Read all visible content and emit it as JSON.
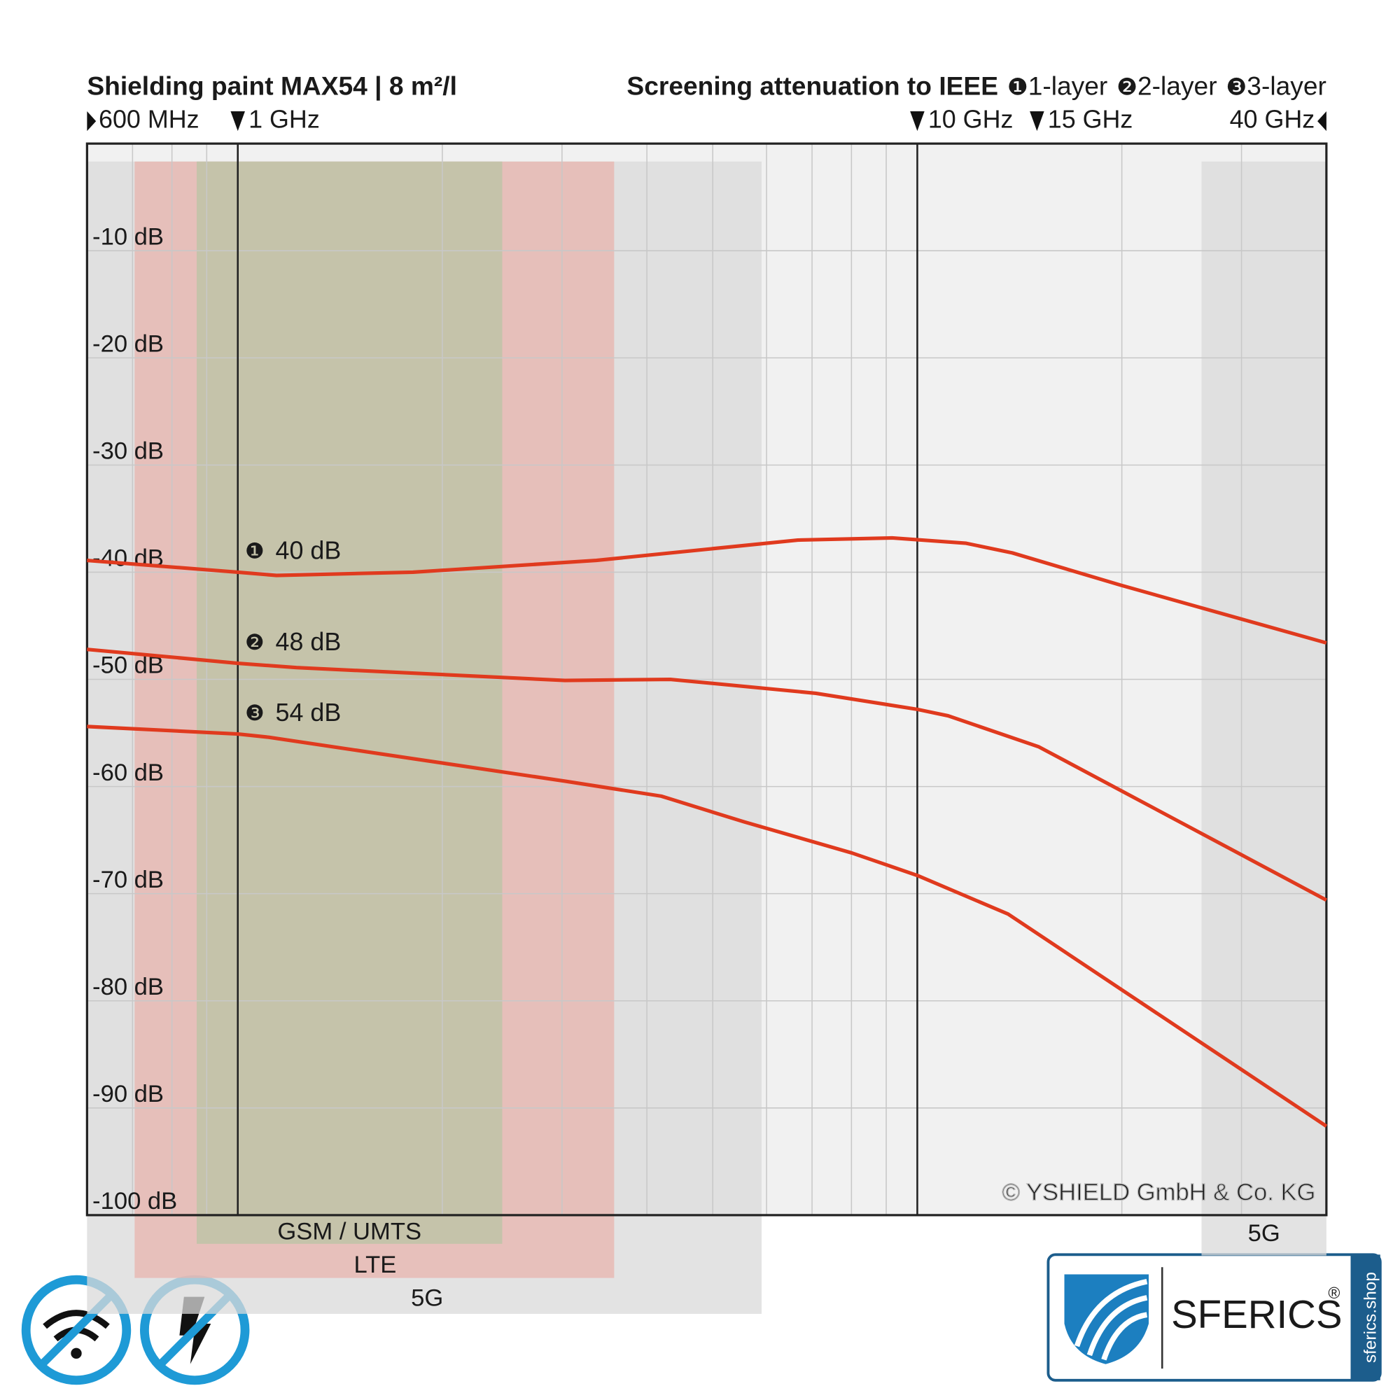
{
  "chart_data": {
    "type": "line",
    "title": "Shielding paint MAX54 | 8 m²/l",
    "legend_title": "Screening attenuation to IEEE",
    "xscale": "log",
    "xlim": [
      0.6,
      40
    ],
    "ylim": [
      -100,
      0
    ],
    "xticks": [
      {
        "value": 0.6,
        "label": "600 MHz"
      },
      {
        "value": 1,
        "label": "1 GHz"
      },
      {
        "value": 10,
        "label": "10 GHz"
      },
      {
        "value": 15,
        "label": "15 GHz"
      },
      {
        "value": 40,
        "label": "40 GHz"
      }
    ],
    "xgrid": [
      0.7,
      0.8,
      0.9,
      1,
      2,
      3,
      4,
      5,
      6,
      7,
      8,
      9,
      10,
      20,
      30
    ],
    "reference_lines": [
      1,
      10
    ],
    "yticks": [
      {
        "value": -10,
        "label": "-10 dB"
      },
      {
        "value": -20,
        "label": "-20 dB"
      },
      {
        "value": -30,
        "label": "-30 dB"
      },
      {
        "value": -40,
        "label": "-40 dB"
      },
      {
        "value": -50,
        "label": "-50 dB"
      },
      {
        "value": -60,
        "label": "-60 dB"
      },
      {
        "value": -70,
        "label": "-70 dB"
      },
      {
        "value": -80,
        "label": "-80 dB"
      },
      {
        "value": -90,
        "label": "-90 dB"
      },
      {
        "value": -100,
        "label": "-100 dB"
      }
    ],
    "grid": true,
    "bands": [
      {
        "label": "5G",
        "range": [
          0.6,
          5.9
        ],
        "color": "#d9d9d9"
      },
      {
        "label": "LTE",
        "range": [
          0.705,
          3.58
        ],
        "color": "#e8b4ae"
      },
      {
        "label": "GSM / UMTS",
        "range": [
          0.87,
          2.45
        ],
        "color": "#b9c4a4"
      },
      {
        "label": "5G",
        "range": [
          26.2,
          40
        ],
        "color": "#d9d9d9"
      }
    ],
    "series": [
      {
        "name": "1-layer",
        "badge": "❶",
        "annotation": "40 dB",
        "color": "#e03a1e",
        "x": [
          0.6,
          1,
          1.14,
          1.81,
          3.37,
          6.67,
          9.18,
          11.8,
          13.8,
          19.9,
          40
        ],
        "values": [
          -38.9,
          -40.0,
          -40.3,
          -40.0,
          -38.9,
          -37.0,
          -36.8,
          -37.3,
          -38.2,
          -41.2,
          -46.6
        ]
      },
      {
        "name": "2-layer",
        "badge": "❷",
        "annotation": "48 dB",
        "color": "#e03a1e",
        "x": [
          0.6,
          1,
          1.22,
          3.03,
          4.33,
          7.09,
          10,
          11.1,
          15.1,
          40
        ],
        "values": [
          -47.2,
          -48.5,
          -48.9,
          -50.1,
          -50.0,
          -51.3,
          -52.8,
          -53.4,
          -56.3,
          -70.6
        ]
      },
      {
        "name": "3-layer",
        "badge": "❸",
        "annotation": "54 dB",
        "color": "#e03a1e",
        "x": [
          0.6,
          1,
          1.11,
          1.81,
          3.03,
          4.2,
          5.56,
          8.01,
          10,
          13.6,
          40
        ],
        "values": [
          -54.4,
          -55.1,
          -55.4,
          -57.4,
          -59.5,
          -60.9,
          -63.3,
          -66.2,
          -68.3,
          -71.9,
          -91.7
        ]
      }
    ],
    "copyright": "© YSHIELD GmbH & Co. KG",
    "logo": {
      "brand": "SFERICS",
      "mark": "®",
      "url": "sferics.shop"
    }
  }
}
